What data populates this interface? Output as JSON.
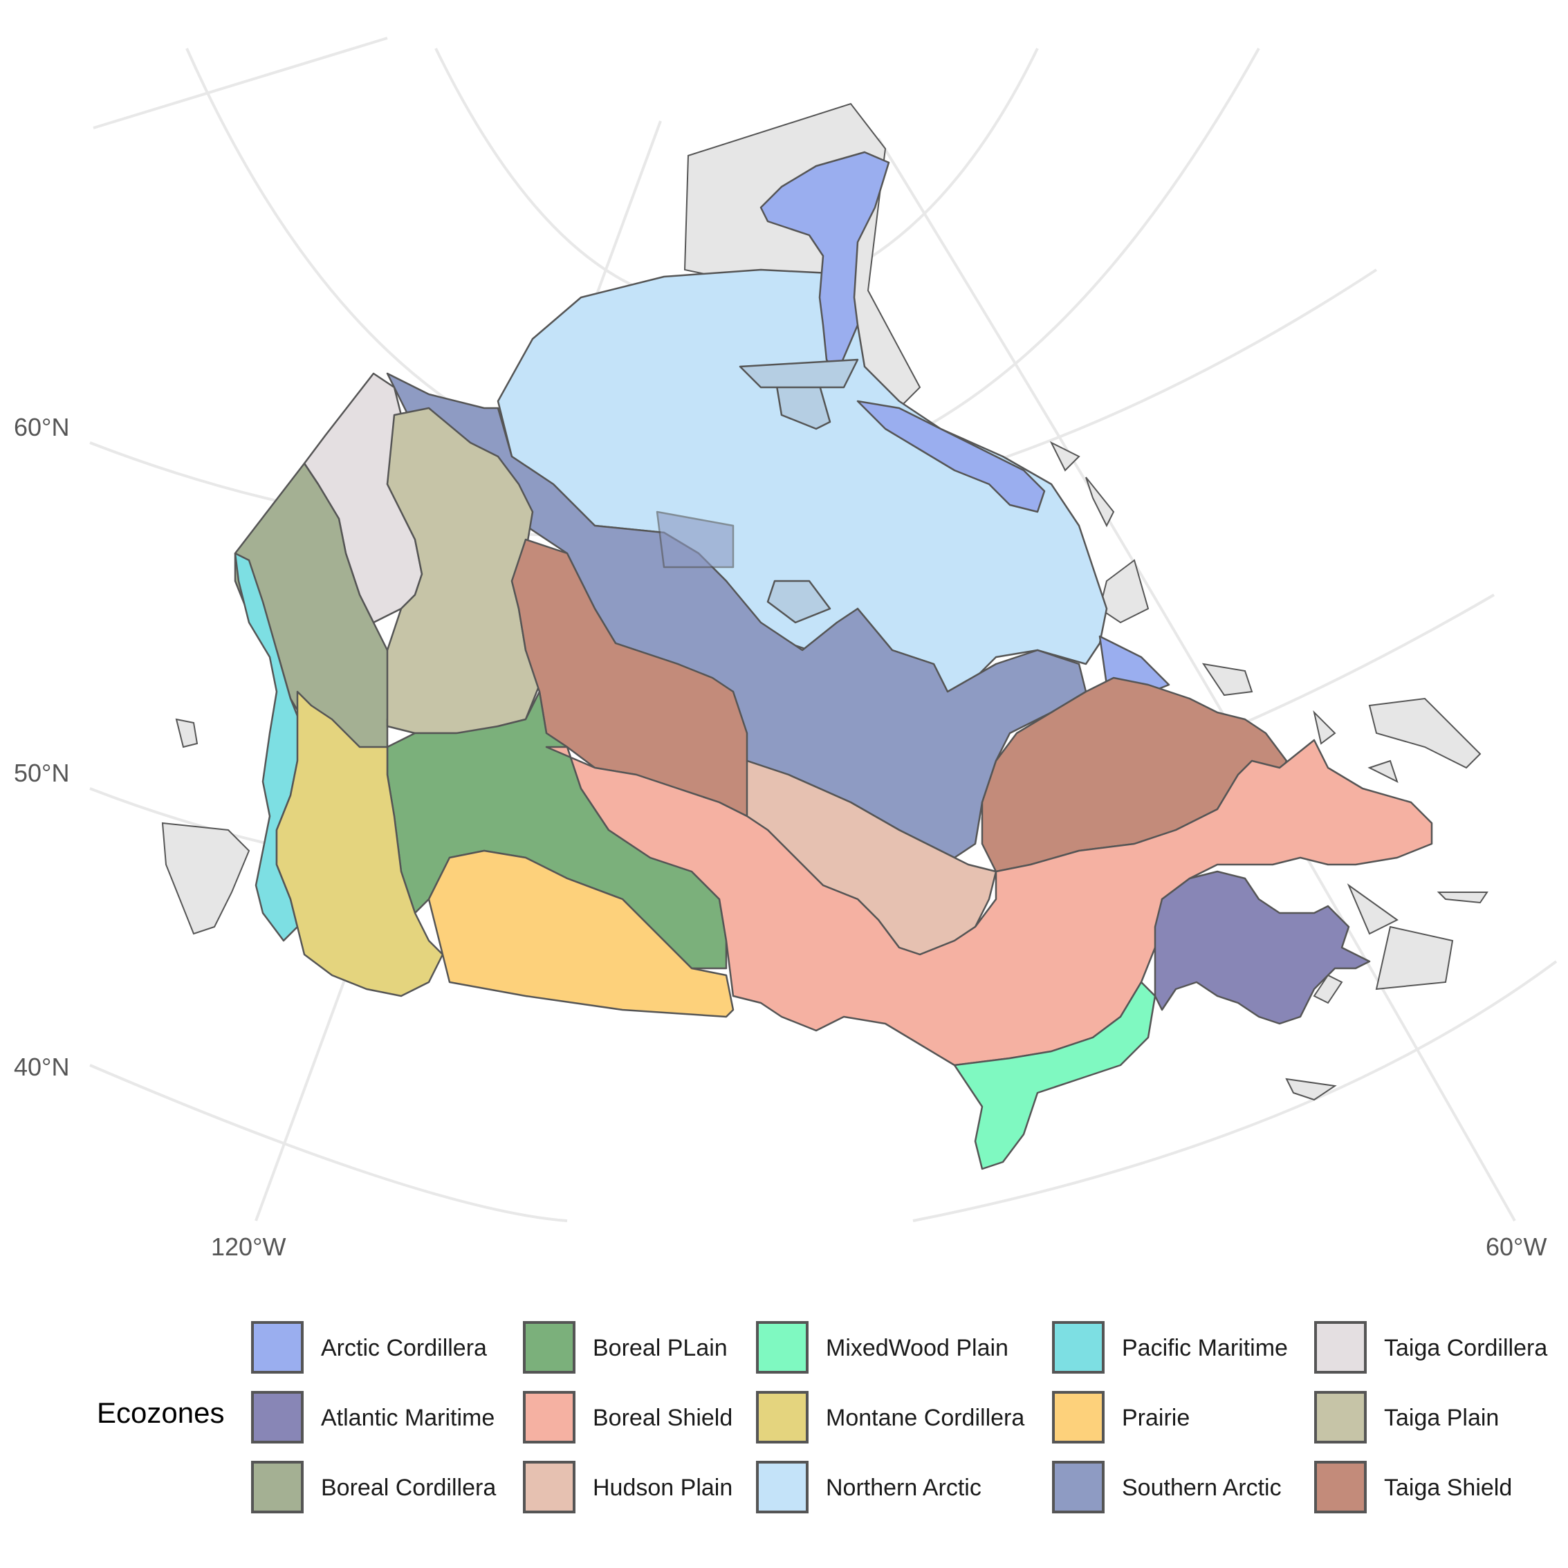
{
  "axes": {
    "lat_labels": [
      "60°N",
      "50°N",
      "40°N"
    ],
    "lon_labels": [
      "120°W",
      "60°W"
    ]
  },
  "legend": {
    "title": "Ecozones",
    "items": [
      {
        "label": "Arctic Cordillera",
        "color": "#9aaeef"
      },
      {
        "label": "Atlantic Maritime",
        "color": "#8886b6"
      },
      {
        "label": "Boreal Cordillera",
        "color": "#a4b093"
      },
      {
        "label": "Boreal PLain",
        "color": "#7bb07b"
      },
      {
        "label": "Boreal Shield",
        "color": "#f5b1a2"
      },
      {
        "label": "Hudson Plain",
        "color": "#e6c1b1"
      },
      {
        "label": "MixedWood Plain",
        "color": "#7ff9c1"
      },
      {
        "label": "Montane Cordillera",
        "color": "#e4d47e"
      },
      {
        "label": "Northern Arctic",
        "color": "#c4e3f9"
      },
      {
        "label": "Pacific Maritime",
        "color": "#7ddfe3"
      },
      {
        "label": "Prairie",
        "color": "#fdd17b"
      },
      {
        "label": "Southern Arctic",
        "color": "#8e9bc3"
      },
      {
        "label": "Taiga Cordillera",
        "color": "#e4dfe1"
      },
      {
        "label": "Taiga Plain",
        "color": "#c6c4a7"
      },
      {
        "label": "Taiga Shield",
        "color": "#c38b7a"
      }
    ]
  }
}
